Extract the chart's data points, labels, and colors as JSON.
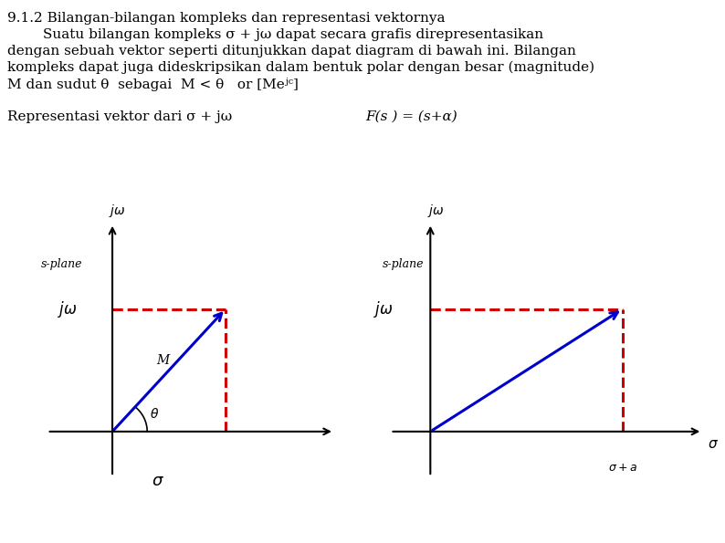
{
  "title_line1": "9.1.2 Bilangan-bilangan kompleks dan representasi vektornya",
  "para_line2": "        Suatu bilangan kompleks σ + jω dapat secara grafis direpresentasikan",
  "para_line3": "dengan sebuah vektor seperti ditunjukkan dapat diagram di bawah ini. Bilangan",
  "para_line4": "kompleks dapat juga dideskripsikan dalam bentuk polar dengan besar (magnitude)",
  "para_line5": "M dan sudut θ  sebagai  M < θ   or [Meʲᶜ]",
  "label_left": "Representasi vektor dari σ + jω",
  "label_right": "F(s ) = (s+α)",
  "background_color": "#ffffff",
  "text_color": "#000000",
  "vector_color": "#0000cc",
  "dashed_color": "#cc0000",
  "left_plot": {
    "s_plane_label": "s-plane",
    "sigma_val": 0.52,
    "omega_val": 0.6
  },
  "right_plot": {
    "s_plane_label": "s-plane",
    "sigma_val": 0.72,
    "omega_val": 0.6
  },
  "text_fontsize": 11,
  "label_fontsize": 11,
  "plot_label_fontsize": 11,
  "small_fontsize": 10
}
